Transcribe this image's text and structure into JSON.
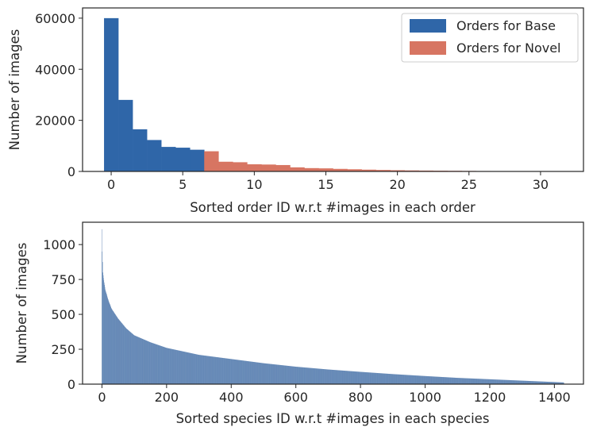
{
  "chart_data": [
    {
      "type": "bar",
      "title": "",
      "xlabel": "Sorted order ID w.r.t #images in each order",
      "ylabel": "Number of images",
      "xlim": [
        -2,
        33
      ],
      "ylim": [
        0,
        64000
      ],
      "xticks": [
        0,
        5,
        10,
        15,
        20,
        25,
        30
      ],
      "yticks": [
        0,
        20000,
        40000,
        60000
      ],
      "grid": false,
      "legend": "top-right",
      "series": [
        {
          "name": "Orders for Base",
          "color": "#2f66a8",
          "x": [
            0,
            1,
            2,
            3,
            4,
            5,
            6
          ],
          "values": [
            60000,
            28000,
            16500,
            12300,
            9600,
            9300,
            8500
          ]
        },
        {
          "name": "Orders for Novel",
          "color": "#d77562",
          "x": [
            7,
            8,
            9,
            10,
            11,
            12,
            13,
            14,
            15,
            16,
            17,
            18,
            19,
            20,
            21,
            22,
            23,
            24,
            25,
            26,
            27,
            28,
            29,
            30,
            31
          ],
          "values": [
            7900,
            3800,
            3600,
            2800,
            2700,
            2500,
            1600,
            1300,
            1200,
            1000,
            850,
            700,
            580,
            480,
            400,
            340,
            290,
            250,
            200,
            160,
            120,
            90,
            70,
            50,
            30
          ]
        }
      ]
    },
    {
      "type": "bar",
      "title": "",
      "xlabel": "Sorted species ID w.r.t #images in each species",
      "ylabel": "Number of images",
      "xlim": [
        -60,
        1490
      ],
      "ylim": [
        0,
        1160
      ],
      "xticks": [
        0,
        200,
        400,
        600,
        800,
        1000,
        1200,
        1400
      ],
      "yticks": [
        0,
        250,
        500,
        750,
        1000
      ],
      "grid": false,
      "legend": "none",
      "n_bars": 1430,
      "color": "#2f5f9c",
      "decay_profile": {
        "x": [
          0,
          1,
          3,
          5,
          10,
          20,
          30,
          50,
          75,
          100,
          150,
          200,
          300,
          400,
          500,
          600,
          700,
          800,
          900,
          1000,
          1100,
          1200,
          1300,
          1400,
          1429
        ],
        "values": [
          1110,
          950,
          800,
          760,
          680,
          600,
          540,
          470,
          400,
          350,
          300,
          260,
          210,
          180,
          150,
          125,
          105,
          88,
          72,
          58,
          45,
          35,
          25,
          15,
          12
        ]
      }
    }
  ]
}
